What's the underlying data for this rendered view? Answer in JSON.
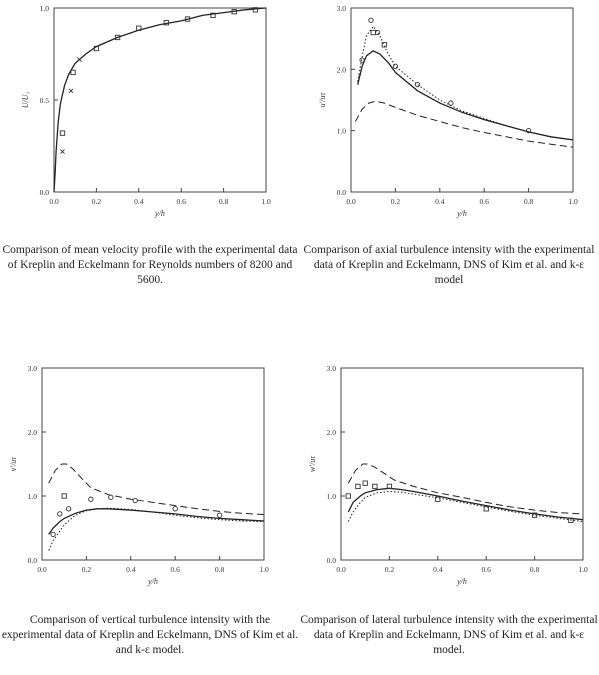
{
  "chart_data": [
    {
      "type": "line",
      "xlabel": "y/h",
      "ylabel": "U/U₁",
      "xlim": [
        0,
        1.0
      ],
      "ylim": [
        0,
        1.0
      ],
      "xticks": [
        "0.0",
        "0.2",
        "0.4",
        "0.6",
        "0.8",
        "1.0"
      ],
      "yticks": [
        "0.0",
        "0.5",
        "1.0"
      ],
      "series": [
        {
          "style": "solid",
          "x": [
            0.0,
            0.005,
            0.01,
            0.02,
            0.03,
            0.05,
            0.07,
            0.1,
            0.15,
            0.2,
            0.3,
            0.4,
            0.5,
            0.6,
            0.7,
            0.8,
            0.9,
            1.0
          ],
          "y": [
            0.0,
            0.1,
            0.22,
            0.38,
            0.48,
            0.58,
            0.64,
            0.7,
            0.75,
            0.79,
            0.84,
            0.88,
            0.91,
            0.93,
            0.96,
            0.975,
            0.99,
            1.0
          ]
        },
        {
          "style": "marker-square",
          "x": [
            0.04,
            0.09,
            0.2,
            0.3,
            0.4,
            0.53,
            0.63,
            0.75,
            0.85,
            0.95
          ],
          "y": [
            0.32,
            0.65,
            0.78,
            0.84,
            0.89,
            0.92,
            0.94,
            0.96,
            0.98,
            0.99
          ]
        },
        {
          "style": "marker-x",
          "x": [
            0.04,
            0.08,
            0.12
          ],
          "y": [
            0.22,
            0.55,
            0.72
          ]
        }
      ]
    },
    {
      "type": "line",
      "xlabel": "y/h",
      "ylabel": "u'/uτ",
      "xlim": [
        0,
        1.0
      ],
      "ylim": [
        0,
        3.0
      ],
      "xticks": [
        "0.0",
        "0.2",
        "0.4",
        "0.6",
        "0.8",
        "1.0"
      ],
      "yticks": [
        "0.0",
        "1.0",
        "2.0",
        "3.0"
      ],
      "series": [
        {
          "style": "solid",
          "x": [
            0.03,
            0.05,
            0.07,
            0.1,
            0.13,
            0.17,
            0.2,
            0.25,
            0.3,
            0.4,
            0.5,
            0.6,
            0.7,
            0.8,
            0.9,
            1.0
          ],
          "y": [
            1.75,
            2.05,
            2.22,
            2.3,
            2.25,
            2.1,
            1.95,
            1.8,
            1.65,
            1.45,
            1.3,
            1.18,
            1.08,
            0.98,
            0.9,
            0.85
          ]
        },
        {
          "style": "dotted",
          "x": [
            0.03,
            0.05,
            0.07,
            0.1,
            0.13,
            0.16,
            0.2,
            0.25,
            0.3,
            0.4,
            0.5,
            0.6,
            0.7,
            0.8,
            0.9,
            1.0
          ],
          "y": [
            1.8,
            2.2,
            2.55,
            2.7,
            2.55,
            2.3,
            2.05,
            1.9,
            1.75,
            1.5,
            1.32,
            1.2,
            1.08,
            0.98,
            0.9,
            0.85
          ]
        },
        {
          "style": "dashed",
          "x": [
            0.02,
            0.05,
            0.08,
            0.11,
            0.15,
            0.2,
            0.3,
            0.4,
            0.5,
            0.6,
            0.7,
            0.8,
            0.9,
            1.0
          ],
          "y": [
            1.15,
            1.35,
            1.45,
            1.48,
            1.45,
            1.38,
            1.25,
            1.15,
            1.05,
            0.97,
            0.9,
            0.83,
            0.78,
            0.73
          ]
        },
        {
          "style": "marker-circle",
          "x": [
            0.05,
            0.09,
            0.12,
            0.2,
            0.3,
            0.45,
            0.8
          ],
          "y": [
            2.15,
            2.8,
            2.6,
            2.05,
            1.75,
            1.45,
            1.0
          ]
        },
        {
          "style": "marker-square",
          "x": [
            0.1,
            0.15
          ],
          "y": [
            2.6,
            2.4
          ]
        }
      ]
    },
    {
      "type": "line",
      "xlabel": "y/h",
      "ylabel": "v'/uτ",
      "xlim": [
        0,
        1.0
      ],
      "ylim": [
        0,
        3.0
      ],
      "xticks": [
        "0.0",
        "0.2",
        "0.4",
        "0.6",
        "0.8",
        "1.0"
      ],
      "yticks": [
        "0.0",
        "1.0",
        "2.0",
        "3.0"
      ],
      "series": [
        {
          "style": "solid",
          "x": [
            0.03,
            0.05,
            0.08,
            0.1,
            0.15,
            0.2,
            0.25,
            0.3,
            0.4,
            0.5,
            0.6,
            0.7,
            0.8,
            0.9,
            1.0
          ],
          "y": [
            0.4,
            0.5,
            0.6,
            0.65,
            0.73,
            0.78,
            0.8,
            0.8,
            0.78,
            0.75,
            0.72,
            0.68,
            0.65,
            0.63,
            0.61
          ]
        },
        {
          "style": "dotted",
          "x": [
            0.03,
            0.05,
            0.08,
            0.1,
            0.15,
            0.2,
            0.25,
            0.3,
            0.4,
            0.5,
            0.6,
            0.7,
            0.8,
            0.9,
            1.0
          ],
          "y": [
            0.15,
            0.3,
            0.45,
            0.55,
            0.7,
            0.77,
            0.8,
            0.81,
            0.79,
            0.75,
            0.7,
            0.66,
            0.63,
            0.61,
            0.6
          ]
        },
        {
          "style": "dashed",
          "x": [
            0.03,
            0.06,
            0.09,
            0.11,
            0.14,
            0.18,
            0.22,
            0.3,
            0.4,
            0.5,
            0.6,
            0.7,
            0.8,
            0.9,
            1.0
          ],
          "y": [
            1.2,
            1.4,
            1.5,
            1.5,
            1.42,
            1.27,
            1.13,
            1.02,
            0.95,
            0.9,
            0.85,
            0.8,
            0.76,
            0.73,
            0.71
          ]
        },
        {
          "style": "marker-circle",
          "x": [
            0.05,
            0.08,
            0.12,
            0.22,
            0.31,
            0.42,
            0.6,
            0.8
          ],
          "y": [
            0.4,
            0.72,
            0.8,
            0.95,
            0.98,
            0.93,
            0.8,
            0.7
          ]
        },
        {
          "style": "marker-square",
          "x": [
            0.1
          ],
          "y": [
            1.0
          ]
        }
      ]
    },
    {
      "type": "line",
      "xlabel": "y/h",
      "ylabel": "w'/uτ",
      "xlim": [
        0,
        1.0
      ],
      "ylim": [
        0,
        3.0
      ],
      "xticks": [
        "0.0",
        "0.2",
        "0.4",
        "0.6",
        "0.8",
        "1.0"
      ],
      "yticks": [
        "0.0",
        "1.0",
        "2.0",
        "3.0"
      ],
      "series": [
        {
          "style": "solid",
          "x": [
            0.03,
            0.05,
            0.08,
            0.1,
            0.15,
            0.2,
            0.25,
            0.3,
            0.4,
            0.5,
            0.6,
            0.7,
            0.8,
            0.9,
            1.0
          ],
          "y": [
            0.75,
            0.9,
            1.0,
            1.05,
            1.1,
            1.12,
            1.1,
            1.07,
            1.0,
            0.92,
            0.85,
            0.78,
            0.72,
            0.67,
            0.63
          ]
        },
        {
          "style": "dotted",
          "x": [
            0.03,
            0.05,
            0.08,
            0.1,
            0.15,
            0.2,
            0.25,
            0.3,
            0.4,
            0.5,
            0.6,
            0.7,
            0.8,
            0.9,
            1.0
          ],
          "y": [
            0.6,
            0.75,
            0.9,
            0.98,
            1.05,
            1.07,
            1.06,
            1.03,
            0.97,
            0.9,
            0.83,
            0.76,
            0.7,
            0.65,
            0.6
          ]
        },
        {
          "style": "dashed",
          "x": [
            0.03,
            0.06,
            0.09,
            0.11,
            0.14,
            0.18,
            0.22,
            0.3,
            0.4,
            0.5,
            0.6,
            0.7,
            0.8,
            0.9,
            1.0
          ],
          "y": [
            1.2,
            1.4,
            1.5,
            1.5,
            1.45,
            1.35,
            1.25,
            1.15,
            1.05,
            0.98,
            0.9,
            0.83,
            0.78,
            0.74,
            0.72
          ]
        },
        {
          "style": "marker-square",
          "x": [
            0.03,
            0.07,
            0.1,
            0.14,
            0.2,
            0.4,
            0.6,
            0.8,
            0.95
          ],
          "y": [
            1.0,
            1.15,
            1.2,
            1.15,
            1.15,
            0.95,
            0.8,
            0.7,
            0.62
          ]
        }
      ]
    }
  ],
  "captions": [
    "Comparison of mean velocity profile with the experimental data of Kreplin and Eckelmann for Reynolds numbers of 8200 and 5600.",
    "Comparison of axial turbulence intensity with the experimental data of Kreplin and Eckelmann, DNS of Kim et al. and k-ε model",
    "Comparison of vertical turbulence intensity with the experimental data of Kreplin and Eckelmann, DNS of Kim et al. and k-ε model.",
    "Comparison of lateral turbulence intensity with the experimental data of Kreplin and Eckelmann, DNS of Kim et al. and k-ε model."
  ]
}
